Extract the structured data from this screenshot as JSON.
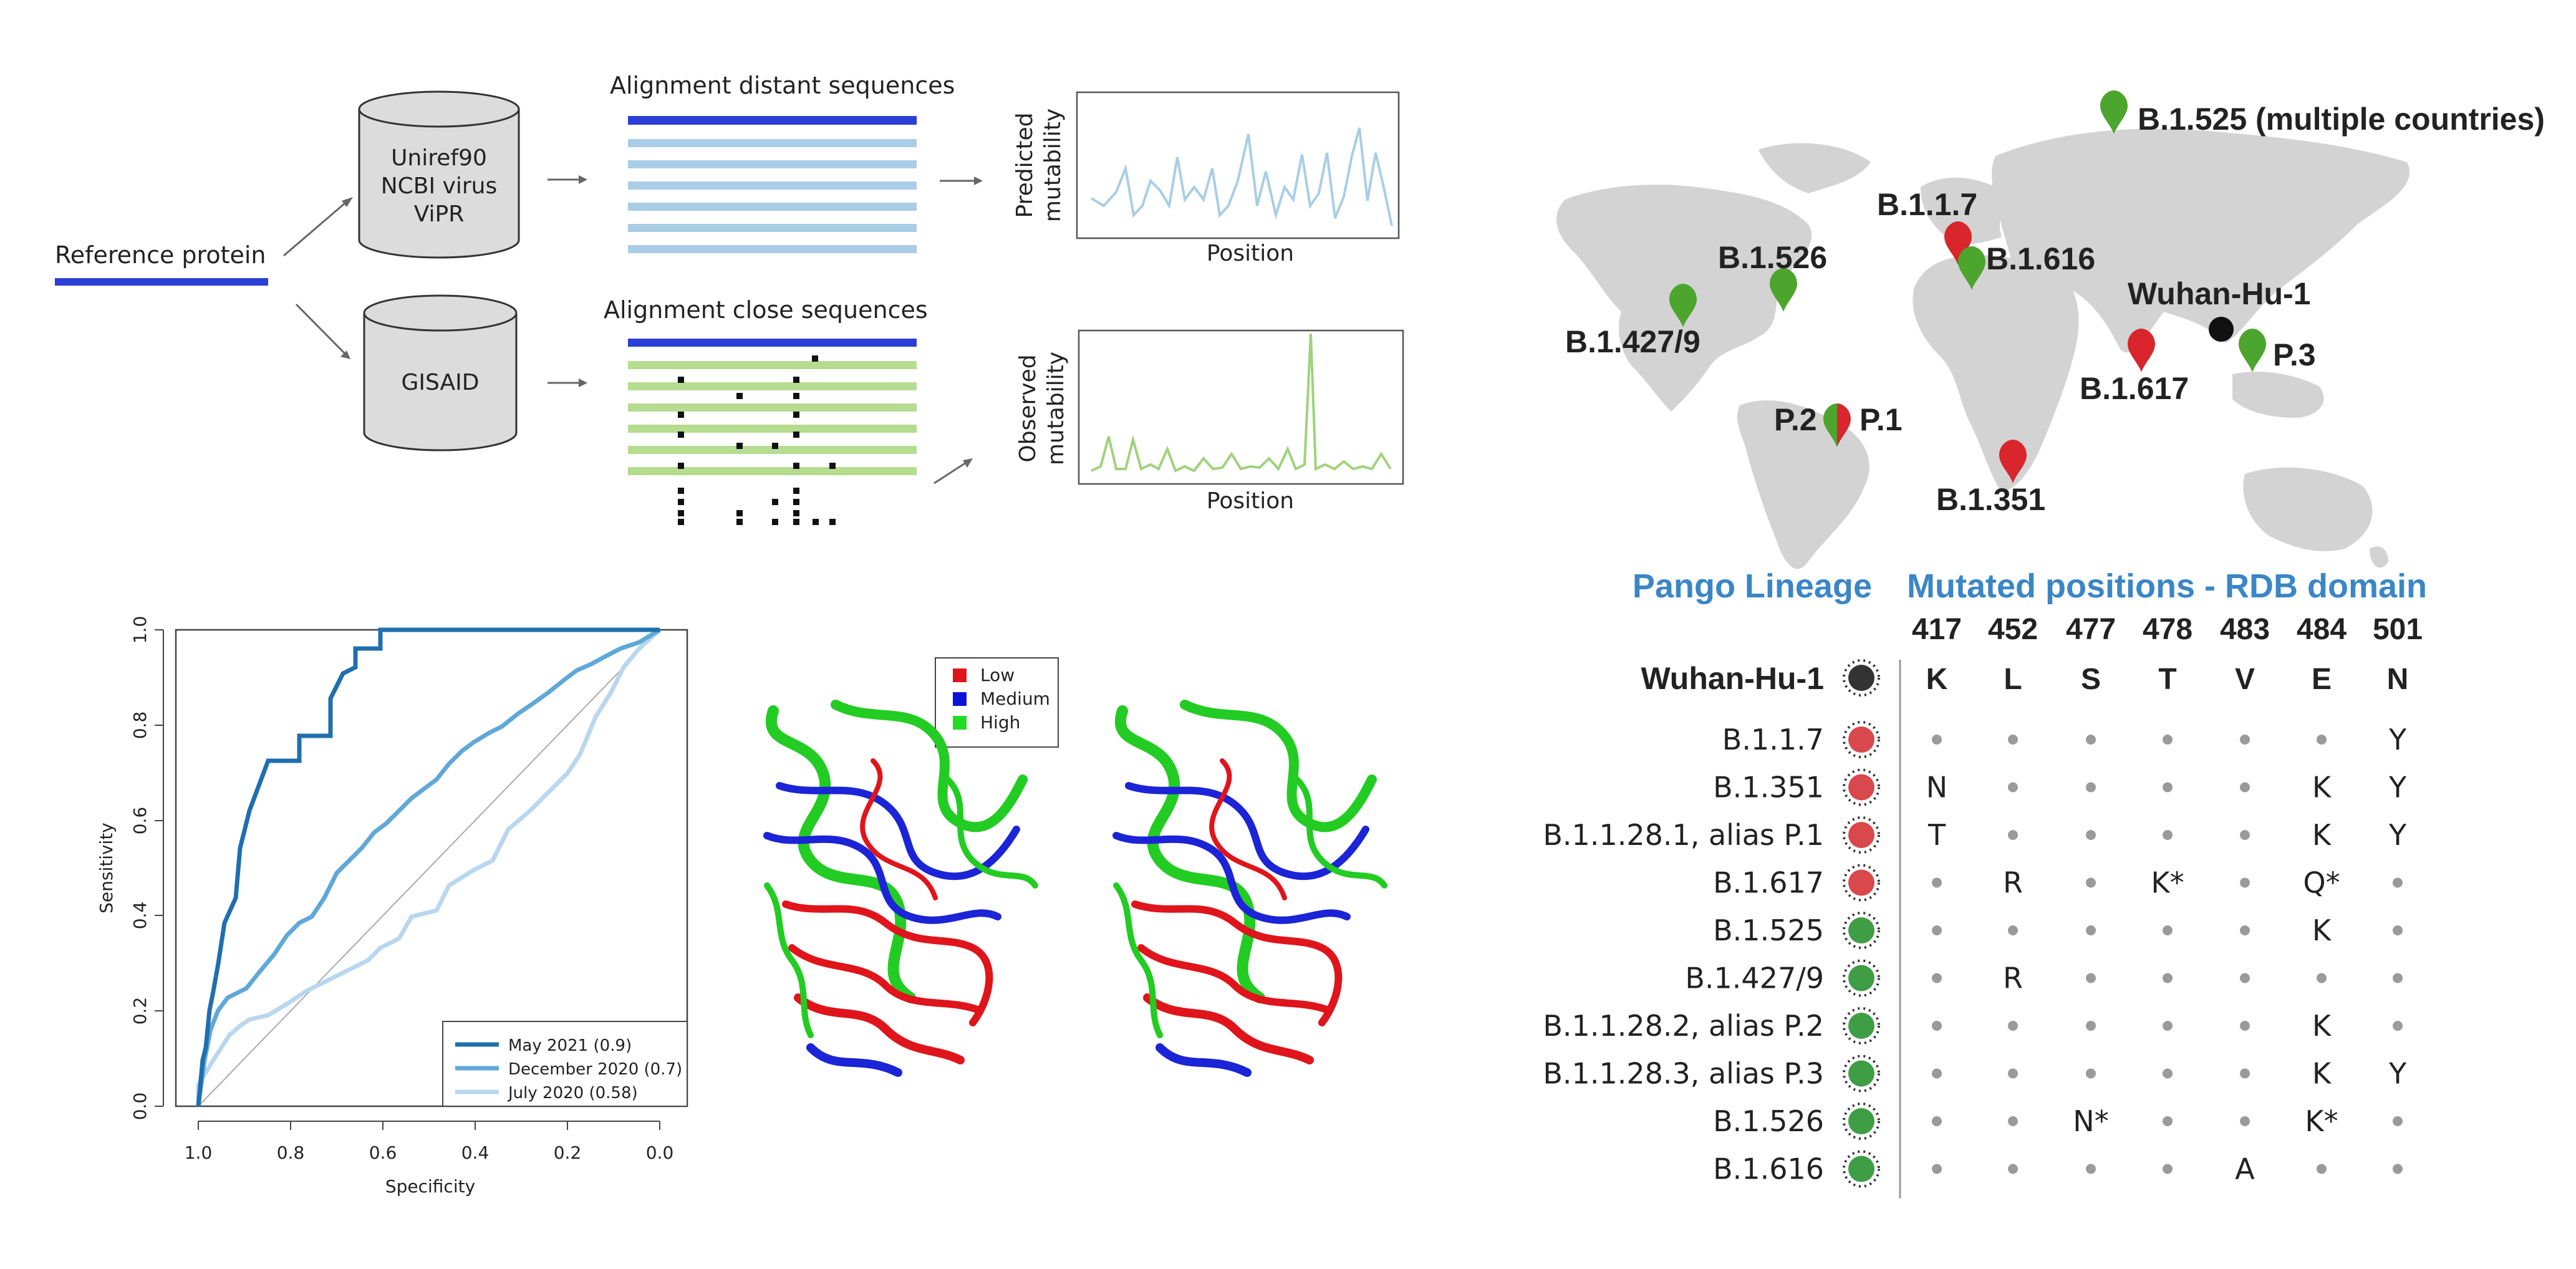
{
  "pipeline": {
    "reference_protein": "Reference protein",
    "db_top": [
      "Uniref90",
      "NCBI virus",
      "ViPR"
    ],
    "db_bottom": "GISAID",
    "align_distant_title": "Alignment distant sequences",
    "align_close_title": "Alignment close sequences",
    "predicted_ylabel": [
      "Predicted",
      "mutability"
    ],
    "observed_ylabel": [
      "Observed",
      "mutability"
    ],
    "position_label": "Position",
    "colors": {
      "blue_dark": "#2b3fd6",
      "blue_light": "#a9cde6",
      "green_light": "#b5dc8f",
      "green_line": "#9fd27c"
    }
  },
  "roc": {
    "xlabel": "Specificity",
    "ylabel": "Sensitivity",
    "x_ticks": [
      "1.0",
      "0.8",
      "0.6",
      "0.4",
      "0.2",
      "0.0"
    ],
    "y_ticks": [
      "0.0",
      "0.2",
      "0.4",
      "0.6",
      "0.8",
      "1.0"
    ],
    "legend": [
      {
        "label": "May 2021 (0.9)",
        "color": "#1f6fae"
      },
      {
        "label": "December 2020 (0.7)",
        "color": "#5fa8d8"
      },
      {
        "label": "July 2020 (0.58)",
        "color": "#b9d7ee"
      }
    ]
  },
  "protein": {
    "legend": [
      {
        "label": "Low",
        "color": "#e0141b"
      },
      {
        "label": "Medium",
        "color": "#0a13d6"
      },
      {
        "label": "High",
        "color": "#22dd22"
      }
    ]
  },
  "map": {
    "markers": [
      {
        "label": "B.1.525 (multiple countries)",
        "color": "#4ca52c"
      },
      {
        "label": "B.1.1.7",
        "color": "#d8262c"
      },
      {
        "label": "B.1.526",
        "color": "#4ca52c"
      },
      {
        "label": "B.1.616",
        "color": "#4ca52c"
      },
      {
        "label": "Wuhan-Hu-1",
        "color": "#111111"
      },
      {
        "label": "B.1.427/9",
        "color": "#4ca52c"
      },
      {
        "label": "P.3",
        "color": "#4ca52c"
      },
      {
        "label": "B.1.617",
        "color": "#d8262c"
      },
      {
        "label": "P.2",
        "color": "#4ca52c"
      },
      {
        "label": "P.1",
        "color": "#d8262c"
      },
      {
        "label": "B.1.351",
        "color": "#d8262c"
      }
    ]
  },
  "table": {
    "lineage_header": "Pango Lineage",
    "positions_header": "Mutated positions - RDB domain",
    "positions": [
      "417",
      "452",
      "477",
      "478",
      "483",
      "484",
      "501"
    ],
    "reference": {
      "name": "Wuhan-Hu-1",
      "residues": [
        "K",
        "L",
        "S",
        "T",
        "V",
        "E",
        "N"
      ]
    },
    "rows": [
      {
        "name": "B.1.1.7",
        "status": "red",
        "cells": [
          "",
          "",
          "",
          "",
          "",
          "",
          "Y"
        ]
      },
      {
        "name": "B.1.351",
        "status": "red",
        "cells": [
          "N",
          "",
          "",
          "",
          "",
          "K",
          "Y"
        ]
      },
      {
        "name": "B.1.1.28.1, alias P.1",
        "status": "red",
        "cells": [
          "T",
          "",
          "",
          "",
          "",
          "K",
          "Y"
        ]
      },
      {
        "name": "B.1.617",
        "status": "red",
        "cells": [
          "",
          "R",
          "",
          "K*",
          "",
          "Q*",
          ""
        ]
      },
      {
        "name": "B.1.525",
        "status": "green",
        "cells": [
          "",
          "",
          "",
          "",
          "",
          "K",
          ""
        ]
      },
      {
        "name": "B.1.427/9",
        "status": "green",
        "cells": [
          "",
          "R",
          "",
          "",
          "",
          "",
          ""
        ]
      },
      {
        "name": "B.1.1.28.2, alias P.2",
        "status": "green",
        "cells": [
          "",
          "",
          "",
          "",
          "",
          "K",
          ""
        ]
      },
      {
        "name": "B.1.1.28.3, alias P.3",
        "status": "green",
        "cells": [
          "",
          "",
          "",
          "",
          "",
          "K",
          "Y"
        ]
      },
      {
        "name": "B.1.526",
        "status": "green",
        "cells": [
          "",
          "",
          "N*",
          "",
          "",
          "K*",
          ""
        ]
      },
      {
        "name": "B.1.616",
        "status": "green",
        "cells": [
          "",
          "",
          "",
          "",
          "A",
          "",
          ""
        ]
      }
    ],
    "status_colors": {
      "red": "#d9484c",
      "green": "#3f9d45",
      "reference": "#333333"
    }
  }
}
